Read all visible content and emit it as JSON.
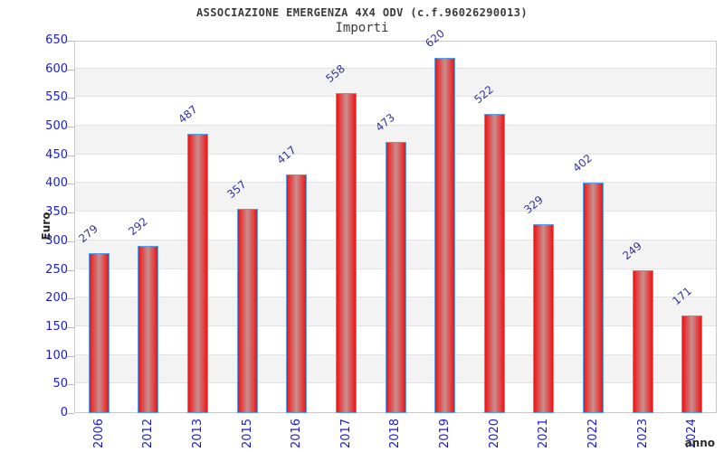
{
  "chart_data": {
    "type": "bar",
    "title": "ASSOCIAZIONE EMERGENZA 4X4 ODV (c.f.96026290013)",
    "subtitle": "Importi",
    "xlabel": "anno",
    "ylabel": "Euro",
    "categories": [
      "2006",
      "2012",
      "2013",
      "2015",
      "2016",
      "2017",
      "2018",
      "2019",
      "2020",
      "2021",
      "2022",
      "2023",
      "2024"
    ],
    "values": [
      279,
      292,
      487,
      357,
      417,
      558,
      473,
      620,
      522,
      329,
      402,
      249,
      171
    ],
    "ylim": [
      0,
      650
    ],
    "ytick_step": 50,
    "grid": "horizontal-bands-alternating",
    "legend": "none",
    "colors": {
      "bar_edge": "#ee1515",
      "bar_mid": "#c98f8f",
      "bar_border": "#55a0f0",
      "tick_label": "#1a1ad6",
      "value_label": "#333399",
      "band_gray": "#f3f3f3",
      "gridline": "#e2e2e2",
      "plot_border": "#c9c9c9",
      "title_text": "#3b3b3b"
    }
  }
}
